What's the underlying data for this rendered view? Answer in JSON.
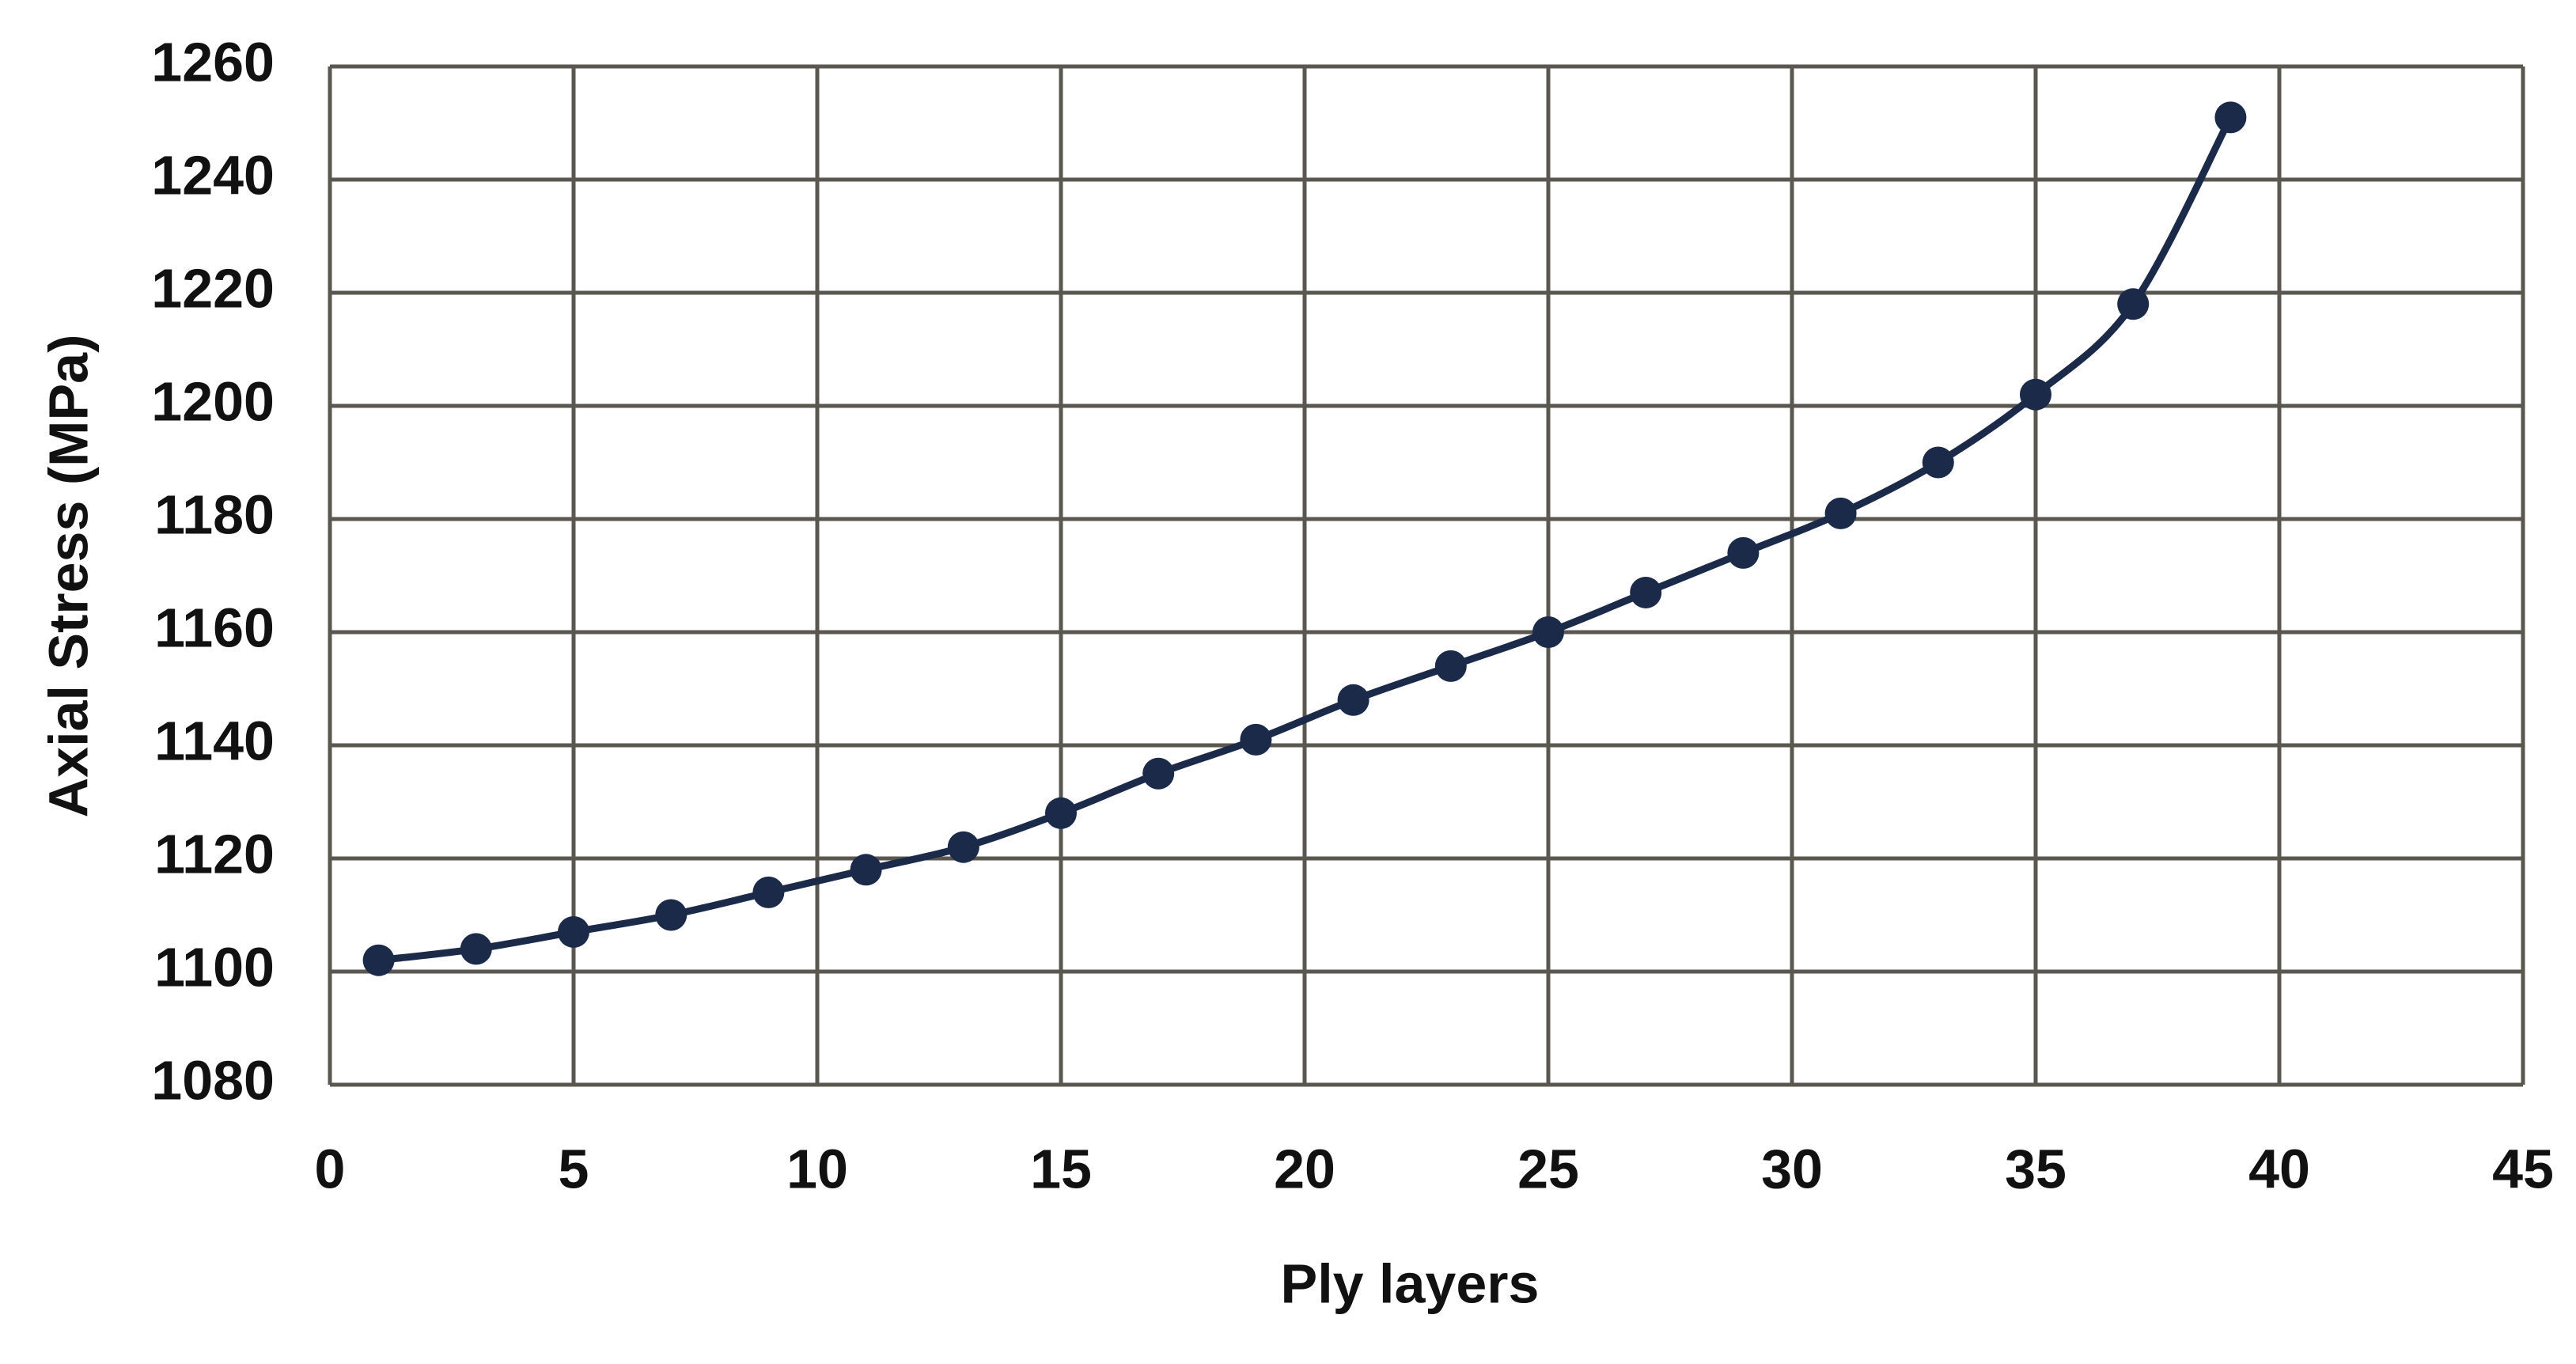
{
  "chart_data": {
    "type": "line",
    "x_label": "Ply layers",
    "y_label": "Axial Stress (MPa)",
    "x": [
      1,
      3,
      5,
      7,
      9,
      11,
      13,
      15,
      17,
      19,
      21,
      23,
      25,
      27,
      29,
      31,
      33,
      35,
      37,
      39
    ],
    "series": [
      {
        "color": "#1b2a48",
        "values": [
          1102,
          1104,
          1107,
          1110,
          1114,
          1118,
          1122,
          1128,
          1135,
          1141,
          1148,
          1154,
          1160,
          1167,
          1174,
          1181,
          1190,
          1202,
          1218,
          1251
        ]
      }
    ],
    "xlim": [
      0,
      45
    ],
    "xticks": [
      0,
      5,
      10,
      15,
      20,
      25,
      30,
      35,
      40,
      45
    ],
    "ylim": [
      1080,
      1260
    ],
    "yticks": [
      1080,
      1100,
      1120,
      1140,
      1160,
      1180,
      1200,
      1220,
      1240,
      1260
    ],
    "grid": true
  }
}
